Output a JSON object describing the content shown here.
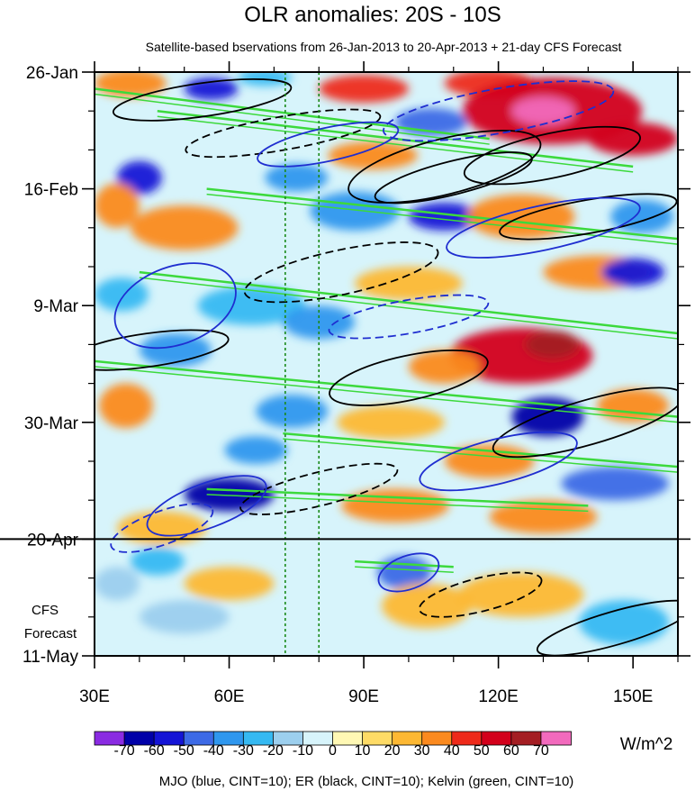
{
  "chart_data": {
    "type": "heatmap",
    "title": "OLR anomalies: 20S - 10S",
    "subtitle": "Satellite-based bservations from 26-Jan-2013 to 20-Apr-2013 + 21-day CFS Forecast",
    "xlim": [
      30,
      160
    ],
    "x_ticks": [
      {
        "value": 30,
        "label": "30E"
      },
      {
        "value": 60,
        "label": "60E"
      },
      {
        "value": 90,
        "label": "90E"
      },
      {
        "value": 120,
        "label": "120E"
      },
      {
        "value": 150,
        "label": "150E"
      }
    ],
    "y_axis_reversed": true,
    "y_range_days": [
      0,
      105
    ],
    "y_ticks": [
      {
        "day": 0,
        "label": "26-Jan"
      },
      {
        "day": 21,
        "label": "16-Feb"
      },
      {
        "day": 42,
        "label": "9-Mar"
      },
      {
        "day": 63,
        "label": "30-Mar"
      },
      {
        "day": 84,
        "label": "20-Apr"
      },
      {
        "day": 105,
        "label": "11-May"
      }
    ],
    "forecast_start_day": 84,
    "forecast_label": [
      "CFS",
      "Forecast"
    ],
    "reference_lines_lon": [
      72.5,
      80
    ],
    "colorbar": {
      "levels": [
        -70,
        -60,
        -50,
        -40,
        -30,
        -20,
        -10,
        0,
        10,
        20,
        30,
        40,
        50,
        60,
        70
      ],
      "colors": [
        "#8a2be2",
        "#0000a8",
        "#1414d6",
        "#3d6ae6",
        "#2f97ee",
        "#35b9f2",
        "#9ccfee",
        "#d7f4fb",
        "#fff8b4",
        "#fedb66",
        "#fdb833",
        "#fb8a1f",
        "#ee2a1a",
        "#d3001b",
        "#a41e23",
        "#f26abd"
      ],
      "units": "W/m^2"
    },
    "contours": {
      "caption": "MJO (blue, CINT=10); ER (black, CINT=10); Kelvin (green, CINT=10)",
      "series": [
        {
          "name": "MJO",
          "color": "#1f2ed0"
        },
        {
          "name": "ER",
          "color": "#000000"
        },
        {
          "name": "Kelvin",
          "color": "#3cd93c"
        }
      ]
    },
    "anomaly_blobs": [
      {
        "lon": 38,
        "day": 2,
        "rlon": 8,
        "rday": 2.5,
        "value": 35
      },
      {
        "lon": 56,
        "day": 3,
        "rlon": 6,
        "rday": 2,
        "value": -60
      },
      {
        "lon": 68,
        "day": 1,
        "rlon": 6,
        "rday": 1.5,
        "value": -30
      },
      {
        "lon": 90,
        "day": 3,
        "rlon": 10,
        "rday": 2.5,
        "value": 40
      },
      {
        "lon": 118,
        "day": 2,
        "rlon": 10,
        "rday": 2.5,
        "value": 45
      },
      {
        "lon": 132,
        "day": 7,
        "rlon": 20,
        "rday": 6,
        "value": 52
      },
      {
        "lon": 130,
        "day": 7,
        "rlon": 7,
        "rday": 2.5,
        "value": 72
      },
      {
        "lon": 150,
        "day": 12,
        "rlon": 10,
        "rday": 3,
        "value": 55
      },
      {
        "lon": 105,
        "day": 9,
        "rlon": 8,
        "rday": 2.5,
        "value": -45
      },
      {
        "lon": 92,
        "day": 15,
        "rlon": 10,
        "rday": 2.5,
        "value": 30
      },
      {
        "lon": 40,
        "day": 19,
        "rlon": 5,
        "rday": 3,
        "value": -55
      },
      {
        "lon": 35,
        "day": 24,
        "rlon": 5,
        "rday": 4,
        "value": 30
      },
      {
        "lon": 75,
        "day": 19,
        "rlon": 7,
        "rday": 2.5,
        "value": -35
      },
      {
        "lon": 50,
        "day": 28,
        "rlon": 12,
        "rday": 4,
        "value": 30
      },
      {
        "lon": 88,
        "day": 25,
        "rlon": 10,
        "rday": 3.5,
        "value": -35
      },
      {
        "lon": 108,
        "day": 26,
        "rlon": 8,
        "rday": 2.5,
        "value": -60
      },
      {
        "lon": 125,
        "day": 26,
        "rlon": 12,
        "rday": 4,
        "value": 30
      },
      {
        "lon": 152,
        "day": 26,
        "rlon": 7,
        "rday": 3,
        "value": -40
      },
      {
        "lon": 142,
        "day": 36,
        "rlon": 12,
        "rday": 3,
        "value": 35
      },
      {
        "lon": 150,
        "day": 36,
        "rlon": 7,
        "rday": 2.5,
        "value": -60
      },
      {
        "lon": 65,
        "day": 42,
        "rlon": 12,
        "rday": 3.5,
        "value": -30
      },
      {
        "lon": 100,
        "day": 38,
        "rlon": 12,
        "rday": 3,
        "value": 25
      },
      {
        "lon": 36,
        "day": 40,
        "rlon": 6,
        "rday": 3,
        "value": -30
      },
      {
        "lon": 80,
        "day": 45,
        "rlon": 8,
        "rday": 3,
        "value": -35
      },
      {
        "lon": 125,
        "day": 51,
        "rlon": 16,
        "rday": 5,
        "value": 50
      },
      {
        "lon": 132,
        "day": 49,
        "rlon": 6,
        "rday": 2.5,
        "value": 62
      },
      {
        "lon": 108,
        "day": 53,
        "rlon": 8,
        "rday": 3,
        "value": 32
      },
      {
        "lon": 48,
        "day": 50,
        "rlon": 8,
        "rday": 3,
        "value": -35
      },
      {
        "lon": 37,
        "day": 60,
        "rlon": 6,
        "rday": 4,
        "value": 30
      },
      {
        "lon": 74,
        "day": 61,
        "rlon": 8,
        "rday": 3,
        "value": -40
      },
      {
        "lon": 131,
        "day": 62,
        "rlon": 8,
        "rday": 3.5,
        "value": -62
      },
      {
        "lon": 150,
        "day": 60,
        "rlon": 8,
        "rday": 3,
        "value": 30
      },
      {
        "lon": 96,
        "day": 63,
        "rlon": 12,
        "rday": 3,
        "value": 25
      },
      {
        "lon": 66,
        "day": 68,
        "rlon": 7,
        "rday": 2.5,
        "value": -40
      },
      {
        "lon": 118,
        "day": 70,
        "rlon": 10,
        "rday": 3,
        "value": 35
      },
      {
        "lon": 60,
        "day": 76,
        "rlon": 10,
        "rday": 3,
        "value": -62
      },
      {
        "lon": 97,
        "day": 78,
        "rlon": 12,
        "rday": 3,
        "value": 35
      },
      {
        "lon": 146,
        "day": 74,
        "rlon": 12,
        "rday": 3,
        "value": -48
      },
      {
        "lon": 130,
        "day": 80,
        "rlon": 12,
        "rday": 3,
        "value": 30
      },
      {
        "lon": 45,
        "day": 82,
        "rlon": 10,
        "rday": 3,
        "value": 25
      },
      {
        "lon": 44,
        "day": 88,
        "rlon": 6,
        "rday": 2.5,
        "value": -30
      },
      {
        "lon": 60,
        "day": 92,
        "rlon": 10,
        "rday": 3,
        "value": 20
      },
      {
        "lon": 99,
        "day": 90,
        "rlon": 6,
        "rday": 3,
        "value": -42
      },
      {
        "lon": 104,
        "day": 96,
        "rlon": 10,
        "rday": 4,
        "value": 20
      },
      {
        "lon": 125,
        "day": 94,
        "rlon": 14,
        "rday": 4,
        "value": 25
      },
      {
        "lon": 148,
        "day": 99,
        "rlon": 10,
        "rday": 4,
        "value": -25
      },
      {
        "lon": 50,
        "day": 98,
        "rlon": 10,
        "rday": 3,
        "value": -20
      },
      {
        "lon": 35,
        "day": 92,
        "rlon": 5,
        "rday": 3,
        "value": -20
      }
    ],
    "contour_ellipses": [
      {
        "series": "ER",
        "lon": 54,
        "day": 5,
        "rlon": 20,
        "rday": 3,
        "tilt": -8,
        "dashed": false
      },
      {
        "series": "ER",
        "lon": 72,
        "day": 11,
        "rlon": 22,
        "rday": 3,
        "tilt": -10,
        "dashed": true
      },
      {
        "series": "ER",
        "lon": 108,
        "day": 17,
        "rlon": 22,
        "rday": 5,
        "tilt": -14,
        "dashed": false
      },
      {
        "series": "ER",
        "lon": 110,
        "day": 19,
        "rlon": 18,
        "rday": 3,
        "tilt": -14,
        "dashed": false
      },
      {
        "series": "ER",
        "lon": 132,
        "day": 15,
        "rlon": 20,
        "rday": 4,
        "tilt": -12,
        "dashed": false
      },
      {
        "series": "ER",
        "lon": 85,
        "day": 36,
        "rlon": 22,
        "rday": 4,
        "tilt": -12,
        "dashed": true
      },
      {
        "series": "ER",
        "lon": 140,
        "day": 26,
        "rlon": 20,
        "rday": 3,
        "tilt": -10,
        "dashed": false
      },
      {
        "series": "ER",
        "lon": 42,
        "day": 50,
        "rlon": 18,
        "rday": 3,
        "tilt": -8,
        "dashed": false
      },
      {
        "series": "ER",
        "lon": 100,
        "day": 55,
        "rlon": 18,
        "rday": 4,
        "tilt": -12,
        "dashed": false
      },
      {
        "series": "ER",
        "lon": 140,
        "day": 63,
        "rlon": 22,
        "rday": 4,
        "tilt": -16,
        "dashed": false
      },
      {
        "series": "ER",
        "lon": 80,
        "day": 75,
        "rlon": 18,
        "rday": 3,
        "tilt": -14,
        "dashed": true
      },
      {
        "series": "ER",
        "lon": 116,
        "day": 94,
        "rlon": 14,
        "rday": 3,
        "tilt": -14,
        "dashed": true
      },
      {
        "series": "ER",
        "lon": 146,
        "day": 100,
        "rlon": 18,
        "rday": 3,
        "tilt": -16,
        "dashed": false
      },
      {
        "series": "MJO",
        "lon": 120,
        "day": 7,
        "rlon": 26,
        "rday": 4,
        "tilt": -10,
        "dashed": true
      },
      {
        "series": "MJO",
        "lon": 82,
        "day": 13,
        "rlon": 16,
        "rday": 3,
        "tilt": -12,
        "dashed": false
      },
      {
        "series": "MJO",
        "lon": 130,
        "day": 28,
        "rlon": 22,
        "rday": 4,
        "tilt": -12,
        "dashed": false
      },
      {
        "series": "MJO",
        "lon": 48,
        "day": 42,
        "rlon": 14,
        "rday": 7,
        "tilt": -20,
        "dashed": false
      },
      {
        "series": "MJO",
        "lon": 100,
        "day": 44,
        "rlon": 18,
        "rday": 3,
        "tilt": -10,
        "dashed": true
      },
      {
        "series": "MJO",
        "lon": 55,
        "day": 78,
        "rlon": 14,
        "rday": 4,
        "tilt": -20,
        "dashed": false
      },
      {
        "series": "MJO",
        "lon": 120,
        "day": 70,
        "rlon": 18,
        "rday": 4,
        "tilt": -14,
        "dashed": false
      },
      {
        "series": "MJO",
        "lon": 100,
        "day": 90,
        "rlon": 7,
        "rday": 3,
        "tilt": -20,
        "dashed": false
      },
      {
        "series": "MJO",
        "lon": 45,
        "day": 82,
        "rlon": 12,
        "rday": 3,
        "tilt": -20,
        "dashed": true
      }
    ],
    "kelvin_tracks": [
      {
        "lon1": 30,
        "day1": 3,
        "lon2": 118,
        "day2": 12
      },
      {
        "lon1": 44,
        "day1": 7,
        "lon2": 150,
        "day2": 17
      },
      {
        "lon1": 55,
        "day1": 21,
        "lon2": 160,
        "day2": 30
      },
      {
        "lon1": 40,
        "day1": 36,
        "lon2": 160,
        "day2": 47
      },
      {
        "lon1": 30,
        "day1": 52,
        "lon2": 160,
        "day2": 62
      },
      {
        "lon1": 72,
        "day1": 65,
        "lon2": 160,
        "day2": 71
      },
      {
        "lon1": 55,
        "day1": 75,
        "lon2": 140,
        "day2": 78
      },
      {
        "lon1": 88,
        "day1": 88,
        "lon2": 110,
        "day2": 89
      }
    ]
  }
}
